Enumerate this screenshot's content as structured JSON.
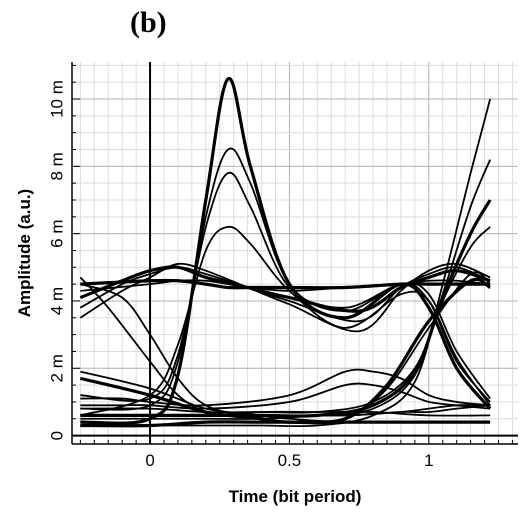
{
  "panel_label": "(b)",
  "chart_data": {
    "type": "line",
    "title": "",
    "xlabel": "Time (bit period)",
    "ylabel": "Amplitude (a.u.)",
    "xlim": [
      -0.28,
      1.32
    ],
    "ylim": [
      -0.00025,
      0.0111
    ],
    "x_ticks": [
      {
        "value": 0,
        "label": "0"
      },
      {
        "value": 0.5,
        "label": "0.5"
      },
      {
        "value": 1,
        "label": "1"
      }
    ],
    "y_ticks": [
      {
        "value": 0,
        "label": "0"
      },
      {
        "value": 0.002,
        "label": "2 m"
      },
      {
        "value": 0.004,
        "label": "4 m"
      },
      {
        "value": 0.006,
        "label": "6 m"
      },
      {
        "value": 0.008,
        "label": "8 m"
      },
      {
        "value": 0.01,
        "label": "10 m"
      }
    ],
    "grid": true,
    "line_color": "#000000",
    "series": [
      {
        "x": [
          -0.25,
          0,
          0.1,
          0.2,
          0.28,
          0.36,
          0.5,
          0.7,
          0.9,
          1.0,
          1.1,
          1.22
        ],
        "y": [
          0.0004,
          0.0005,
          0.0018,
          0.007,
          0.0106,
          0.008,
          0.0045,
          0.0035,
          0.0045,
          0.0038,
          0.002,
          0.0008
        ]
      },
      {
        "x": [
          -0.25,
          0,
          0.1,
          0.2,
          0.28,
          0.36,
          0.5,
          0.7,
          0.9,
          1.0,
          1.1,
          1.22
        ],
        "y": [
          0.0008,
          0.0009,
          0.0022,
          0.0065,
          0.0085,
          0.0075,
          0.0045,
          0.0037,
          0.0045,
          0.004,
          0.0022,
          0.001
        ]
      },
      {
        "x": [
          -0.25,
          0,
          0.1,
          0.2,
          0.28,
          0.36,
          0.5,
          0.7,
          0.9,
          1.0,
          1.1,
          1.22
        ],
        "y": [
          0.0012,
          0.0011,
          0.0024,
          0.0062,
          0.0078,
          0.0068,
          0.0044,
          0.0038,
          0.0045,
          0.0042,
          0.0025,
          0.0011
        ]
      },
      {
        "x": [
          -0.25,
          0,
          0.1,
          0.2,
          0.28,
          0.36,
          0.5,
          0.7,
          0.9,
          1.0,
          1.1,
          1.22
        ],
        "y": [
          0.0006,
          0.0012,
          0.0027,
          0.0055,
          0.0062,
          0.0057,
          0.0043,
          0.0032,
          0.0042,
          0.004,
          0.0023,
          0.0009
        ]
      },
      {
        "x": [
          -0.25,
          0,
          0.1,
          0.2,
          0.28,
          0.36,
          0.5,
          0.7,
          0.9,
          1.0,
          1.1,
          1.22
        ],
        "y": [
          0.0045,
          0.0046,
          0.0046,
          0.0045,
          0.0044,
          0.0044,
          0.0044,
          0.0044,
          0.0045,
          0.0045,
          0.0045,
          0.0045
        ]
      },
      {
        "x": [
          -0.25,
          0,
          0.1,
          0.2,
          0.28,
          0.36,
          0.5,
          0.7,
          0.9,
          1.0,
          1.1,
          1.22
        ],
        "y": [
          0.0043,
          0.0045,
          0.0046,
          0.0046,
          0.0045,
          0.0044,
          0.0043,
          0.0044,
          0.0045,
          0.0046,
          0.0046,
          0.0045
        ]
      },
      {
        "x": [
          -0.25,
          -0.1,
          0,
          0.1,
          0.2,
          0.35,
          0.5,
          0.75,
          0.9,
          1.0,
          1.1,
          1.22
        ],
        "y": [
          0.0035,
          0.0043,
          0.0047,
          0.0051,
          0.0049,
          0.0044,
          0.0039,
          0.0031,
          0.0043,
          0.0049,
          0.0051,
          0.0047
        ]
      },
      {
        "x": [
          -0.25,
          -0.1,
          0,
          0.1,
          0.2,
          0.35,
          0.5,
          0.75,
          0.9,
          1.0,
          1.1,
          1.22
        ],
        "y": [
          0.0038,
          0.0045,
          0.0048,
          0.005,
          0.0048,
          0.0044,
          0.004,
          0.0034,
          0.0044,
          0.0048,
          0.005,
          0.0046
        ]
      },
      {
        "x": [
          -0.25,
          -0.1,
          0,
          0.1,
          0.2,
          0.35,
          0.5,
          0.75,
          0.9,
          1.0,
          1.1,
          1.22
        ],
        "y": [
          0.0041,
          0.0046,
          0.0049,
          0.005,
          0.0047,
          0.0044,
          0.0041,
          0.0037,
          0.0044,
          0.0047,
          0.0049,
          0.0046
        ]
      },
      {
        "x": [
          -0.25,
          -0.1,
          0,
          0.1,
          0.2,
          0.35,
          0.5,
          0.7,
          0.9,
          1.0,
          1.1,
          1.22
        ],
        "y": [
          0.0045,
          0.0041,
          0.003,
          0.0017,
          0.0009,
          0.0006,
          0.0006,
          0.0006,
          0.0007,
          0.0008,
          0.0009,
          0.0009
        ]
      },
      {
        "x": [
          -0.25,
          -0.15,
          0,
          0.1,
          0.2,
          0.3,
          0.5,
          0.7,
          0.9,
          1.0,
          1.1,
          1.22
        ],
        "y": [
          0.0047,
          0.0038,
          0.0022,
          0.0012,
          0.0007,
          0.0006,
          0.0006,
          0.0006,
          0.0007,
          0.0007,
          0.0008,
          0.0009
        ]
      },
      {
        "x": [
          -0.25,
          0,
          0.2,
          0.4,
          0.5,
          0.7,
          0.85,
          1.0,
          1.15,
          1.22
        ],
        "y": [
          0.0019,
          0.0014,
          0.0008,
          0.0006,
          0.0005,
          0.0005,
          0.0014,
          0.0032,
          0.0048,
          0.0045
        ]
      },
      {
        "x": [
          -0.25,
          0,
          0.2,
          0.4,
          0.5,
          0.7,
          0.85,
          1.0,
          1.15,
          1.22
        ],
        "y": [
          0.0017,
          0.0012,
          0.0007,
          0.0005,
          0.0004,
          0.0005,
          0.0015,
          0.0034,
          0.0046,
          0.0044
        ]
      },
      {
        "x": [
          -0.25,
          -0.1,
          0,
          0.2,
          0.5,
          0.7,
          0.8,
          0.9,
          1.0,
          1.1,
          1.22
        ],
        "y": [
          0.0011,
          0.0011,
          0.001,
          0.0009,
          0.0012,
          0.0019,
          0.0019,
          0.0017,
          0.0012,
          0.001,
          0.0009
        ]
      },
      {
        "x": [
          -0.25,
          -0.1,
          0,
          0.2,
          0.5,
          0.7,
          0.8,
          0.9,
          1.0,
          1.1,
          1.22
        ],
        "y": [
          0.0009,
          0.0009,
          0.0009,
          0.0008,
          0.001,
          0.0015,
          0.0015,
          0.0013,
          0.001,
          0.0009,
          0.0008
        ]
      },
      {
        "x": [
          -0.25,
          0,
          0.2,
          0.4,
          0.6,
          0.8,
          1.0,
          1.22
        ],
        "y": [
          0.0006,
          0.0006,
          0.0006,
          0.0007,
          0.0007,
          0.0007,
          0.0006,
          0.0006
        ]
      },
      {
        "x": [
          -0.25,
          0,
          0.2,
          0.4,
          0.6,
          0.8,
          1.0,
          1.22
        ],
        "y": [
          0.0003,
          0.0003,
          0.0004,
          0.0004,
          0.0004,
          0.0004,
          0.0004,
          0.0004
        ]
      },
      {
        "x": [
          -0.25,
          0,
          0.2,
          0.4,
          0.6,
          0.8,
          0.95,
          1.05,
          1.15,
          1.22
        ],
        "y": [
          0.0003,
          0.0003,
          0.0003,
          0.0003,
          0.0003,
          0.0006,
          0.0016,
          0.0045,
          0.0078,
          0.01
        ]
      },
      {
        "x": [
          -0.25,
          0,
          0.2,
          0.4,
          0.6,
          0.8,
          0.95,
          1.05,
          1.15,
          1.22
        ],
        "y": [
          0.0005,
          0.0005,
          0.0005,
          0.0005,
          0.0006,
          0.0008,
          0.0018,
          0.0042,
          0.0068,
          0.0082
        ]
      },
      {
        "x": [
          -0.25,
          0,
          0.2,
          0.4,
          0.6,
          0.8,
          0.95,
          1.05,
          1.15,
          1.22
        ],
        "y": [
          0.0008,
          0.0008,
          0.0007,
          0.0007,
          0.0007,
          0.001,
          0.002,
          0.004,
          0.0056,
          0.0062
        ]
      },
      {
        "x": [
          -0.25,
          0,
          0.2,
          0.4,
          0.6,
          0.8,
          0.95,
          1.05,
          1.15,
          1.22
        ],
        "y": [
          0.0006,
          0.0006,
          0.0006,
          0.0006,
          0.0006,
          0.0009,
          0.0019,
          0.0041,
          0.006,
          0.007
        ]
      }
    ]
  }
}
